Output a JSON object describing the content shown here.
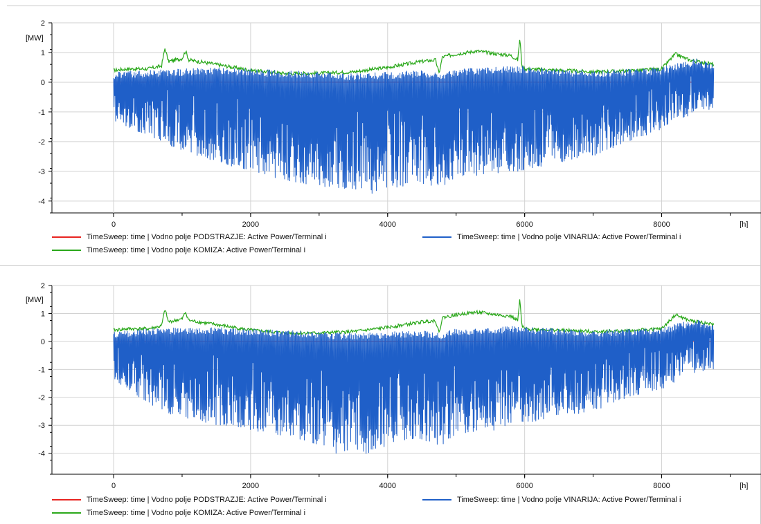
{
  "x_unit": "[h]",
  "y_unit": "[MW]",
  "series_styles": [
    {
      "name": "TimeSweep: time | Vodno polje PODSTRAZJE: Active Power/Terminal i",
      "color": "#e8231f"
    },
    {
      "name": "TimeSweep: time | Vodno polje VINARIJA: Active Power/Terminal i",
      "color": "#1f5fc8"
    },
    {
      "name": "TimeSweep: time | Vodno polje KOMIZA: Active Power/Terminal i",
      "color": "#2aa81a"
    }
  ],
  "chart_data": [
    {
      "type": "line",
      "x_tick_labels": [
        "0",
        "2000",
        "4000",
        "6000",
        "8000"
      ],
      "y_tick_labels": [
        "2",
        "1",
        "0",
        "-1",
        "-2",
        "-3",
        "-4"
      ],
      "xlim": [
        -900,
        9450
      ],
      "ylim": [
        -4.4,
        2
      ],
      "grid": true,
      "legend": "bottom",
      "series": [
        {
          "name": "TimeSweep: time | Vodno polje PODSTRAZJE: Active Power/Terminal i",
          "color": "#e8231f",
          "x": [
            0,
            8760
          ],
          "y": [
            0.0,
            0.0
          ]
        },
        {
          "name": "TimeSweep: time | Vodno polje KOMIZA: Active Power/Terminal i",
          "color": "#2aa81a",
          "x": [
            0,
            200,
            500,
            700,
            750,
            800,
            1000,
            1050,
            1100,
            1500,
            2000,
            2500,
            3000,
            3500,
            4000,
            4500,
            4700,
            4750,
            4800,
            5000,
            5300,
            5600,
            5800,
            5900,
            5930,
            5960,
            6000,
            6500,
            7000,
            7500,
            8000,
            8200,
            8400,
            8760
          ],
          "y": [
            0.4,
            0.45,
            0.45,
            0.55,
            1.15,
            0.7,
            0.8,
            1.05,
            0.75,
            0.6,
            0.4,
            0.3,
            0.3,
            0.35,
            0.5,
            0.7,
            0.75,
            0.3,
            0.85,
            0.95,
            1.05,
            0.95,
            0.9,
            0.75,
            1.5,
            0.55,
            0.45,
            0.4,
            0.35,
            0.38,
            0.45,
            0.95,
            0.75,
            0.6
          ]
        },
        {
          "name": "TimeSweep: time | Vodno polje VINARIJA: Active Power/Terminal i",
          "color": "#1f5fc8",
          "x": [
            0,
            500,
            1000,
            1500,
            2000,
            2500,
            3000,
            3500,
            3700,
            4000,
            4500,
            4750,
            5000,
            5500,
            5900,
            6500,
            7000,
            7500,
            8000,
            8500,
            8760
          ],
          "upper": [
            0.35,
            0.4,
            0.45,
            0.5,
            0.45,
            0.4,
            0.35,
            0.3,
            0.3,
            0.35,
            0.4,
            0.3,
            0.45,
            0.5,
            0.55,
            0.45,
            0.4,
            0.45,
            0.5,
            0.8,
            0.6
          ],
          "lower": [
            -1.3,
            -1.8,
            -2.3,
            -2.7,
            -3.0,
            -3.3,
            -3.5,
            -3.6,
            -3.8,
            -3.6,
            -3.4,
            -3.6,
            -3.2,
            -3.1,
            -3.0,
            -2.7,
            -2.5,
            -2.0,
            -1.6,
            -1.0,
            -0.9
          ]
        }
      ]
    },
    {
      "type": "line",
      "x_tick_labels": [
        "0",
        "2000",
        "4000",
        "6000",
        "8000"
      ],
      "y_tick_labels": [
        "2",
        "1",
        "0",
        "-1",
        "-2",
        "-3",
        "-4"
      ],
      "xlim": [
        -900,
        9450
      ],
      "ylim": [
        -4.75,
        2
      ],
      "grid": true,
      "legend": "bottom",
      "series": [
        {
          "name": "TimeSweep: time | Vodno polje PODSTRAZJE: Active Power/Terminal i",
          "color": "#e8231f",
          "x": [
            0,
            8760
          ],
          "y": [
            0.0,
            0.0
          ]
        },
        {
          "name": "TimeSweep: time | Vodno polje KOMIZA: Active Power/Terminal i",
          "color": "#2aa81a",
          "x": [
            0,
            200,
            500,
            700,
            750,
            800,
            1000,
            1050,
            1100,
            1500,
            2000,
            2500,
            3000,
            3500,
            4000,
            4500,
            4700,
            4750,
            4800,
            5000,
            5300,
            5600,
            5800,
            5900,
            5930,
            5960,
            6000,
            6500,
            7000,
            7500,
            8000,
            8200,
            8400,
            8760
          ],
          "y": [
            0.4,
            0.45,
            0.45,
            0.55,
            1.15,
            0.7,
            0.8,
            1.05,
            0.75,
            0.6,
            0.4,
            0.3,
            0.3,
            0.35,
            0.5,
            0.7,
            0.75,
            0.3,
            0.85,
            0.95,
            1.05,
            0.95,
            0.9,
            0.75,
            1.5,
            0.55,
            0.45,
            0.4,
            0.35,
            0.38,
            0.45,
            0.95,
            0.75,
            0.6
          ]
        },
        {
          "name": "TimeSweep: time | Vodno polje VINARIJA: Active Power/Terminal i",
          "color": "#1f5fc8",
          "x": [
            0,
            500,
            1000,
            1500,
            2000,
            2500,
            3000,
            3300,
            3500,
            3700,
            4000,
            4500,
            4750,
            5000,
            5500,
            5900,
            6500,
            7000,
            7500,
            8000,
            8500,
            8760
          ],
          "upper": [
            0.35,
            0.45,
            0.5,
            0.5,
            0.45,
            0.4,
            0.35,
            0.3,
            0.3,
            0.3,
            0.35,
            0.4,
            0.3,
            0.45,
            0.5,
            0.55,
            0.45,
            0.4,
            0.45,
            0.5,
            0.8,
            0.6
          ],
          "lower": [
            -1.4,
            -2.2,
            -2.8,
            -3.0,
            -3.2,
            -3.4,
            -3.7,
            -4.1,
            -3.8,
            -4.1,
            -3.7,
            -3.5,
            -3.8,
            -3.3,
            -3.2,
            -3.0,
            -2.7,
            -2.5,
            -2.0,
            -1.7,
            -1.1,
            -1.0
          ]
        }
      ]
    }
  ]
}
